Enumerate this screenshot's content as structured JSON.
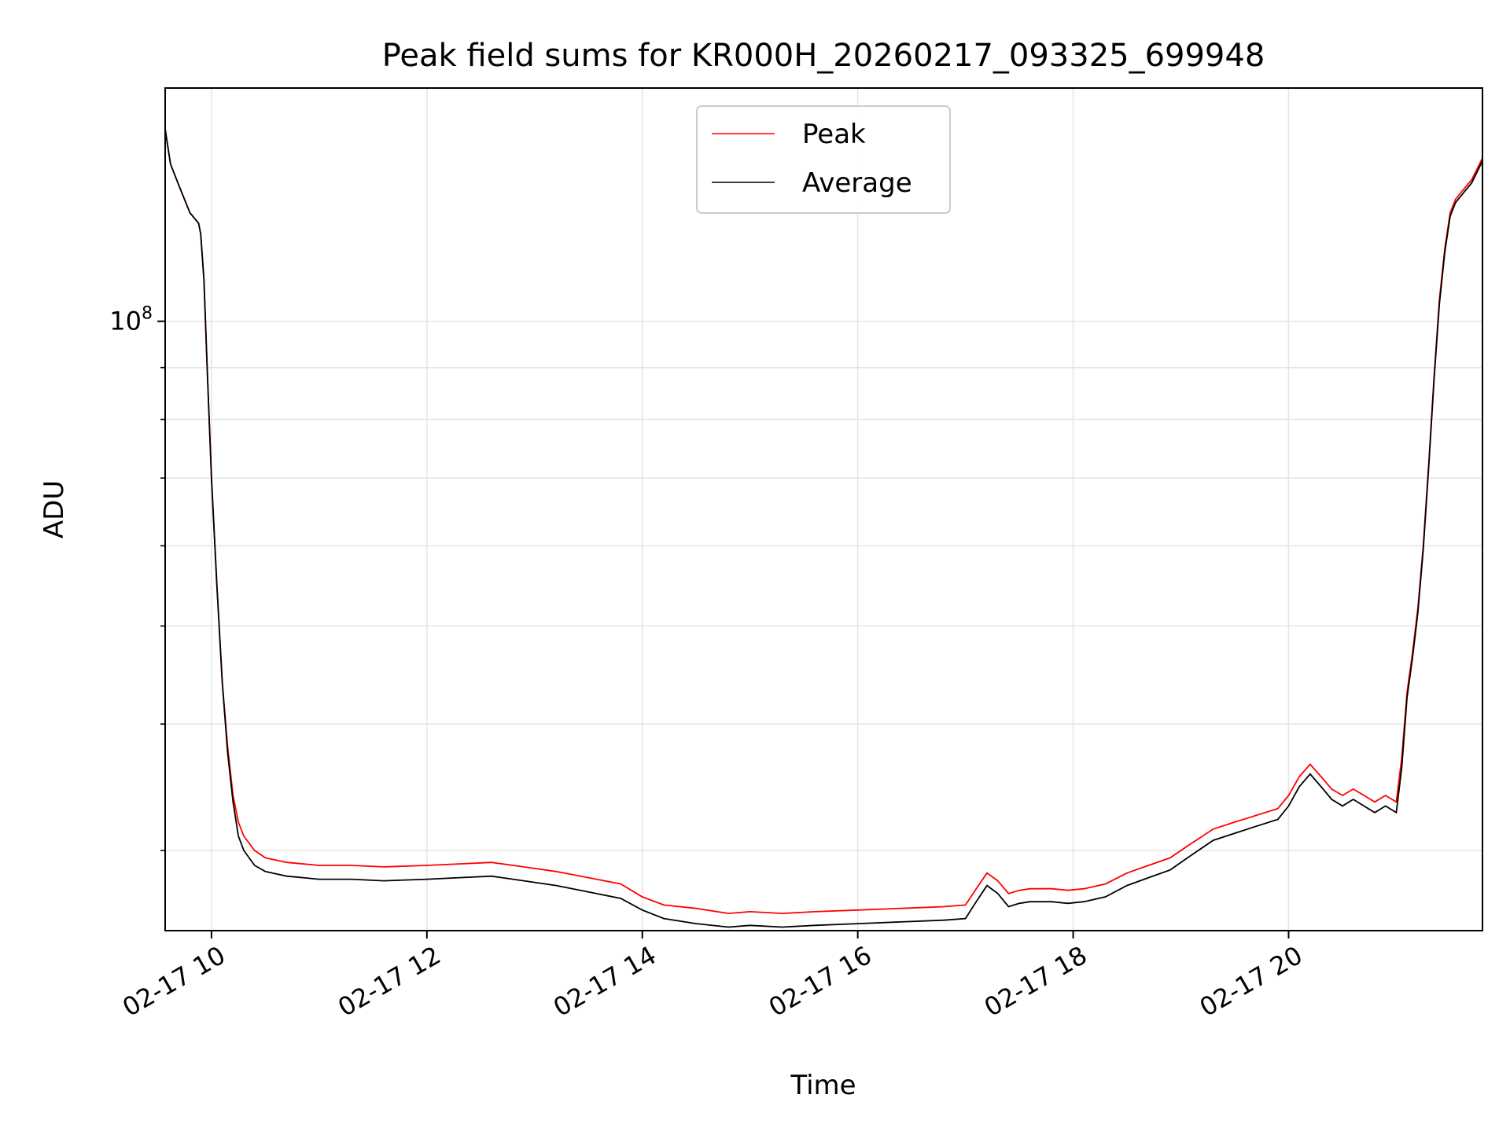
{
  "chart_data": {
    "type": "line",
    "title": "Peak field sums for KR000H_20260217_093325_699948",
    "xlabel": "Time",
    "ylabel": "ADU",
    "y_scale": "log",
    "xlim_hours": [
      9.57,
      21.8
    ],
    "ylim": [
      25000000,
      170000000
    ],
    "x_ticks": [
      {
        "value": 10,
        "label": "02-17 10"
      },
      {
        "value": 12,
        "label": "02-17 12"
      },
      {
        "value": 14,
        "label": "02-17 14"
      },
      {
        "value": 16,
        "label": "02-17 16"
      },
      {
        "value": 18,
        "label": "02-17 18"
      },
      {
        "value": 20,
        "label": "02-17 20"
      }
    ],
    "y_major_ticks": [
      {
        "value": 100000000,
        "base": "10",
        "exponent": "8"
      }
    ],
    "y_minor_ticks": [
      30000000,
      40000000,
      50000000,
      60000000,
      70000000,
      80000000,
      90000000
    ],
    "grid": true,
    "legend_position": "upper-center",
    "series": [
      {
        "name": "Peak",
        "color": "#ff0000",
        "x": [
          9.57,
          9.59,
          9.62,
          9.7,
          9.8,
          9.88,
          9.9,
          9.93,
          9.96,
          10.0,
          10.05,
          10.1,
          10.15,
          10.2,
          10.25,
          10.3,
          10.4,
          10.5,
          10.7,
          11.0,
          11.3,
          11.6,
          12.0,
          12.3,
          12.6,
          12.9,
          13.2,
          13.5,
          13.8,
          14.0,
          14.2,
          14.5,
          14.8,
          15.0,
          15.3,
          15.6,
          16.0,
          16.4,
          16.8,
          17.0,
          17.1,
          17.2,
          17.3,
          17.4,
          17.5,
          17.6,
          17.8,
          17.95,
          18.1,
          18.3,
          18.5,
          18.7,
          18.9,
          19.1,
          19.3,
          19.5,
          19.7,
          19.9,
          20.0,
          20.1,
          20.2,
          20.3,
          20.4,
          20.5,
          20.6,
          20.7,
          20.8,
          20.9,
          21.0,
          21.05,
          21.1,
          21.15,
          21.2,
          21.25,
          21.3,
          21.35,
          21.4,
          21.45,
          21.5,
          21.55,
          21.6,
          21.7,
          21.8
        ],
        "y": [
          155000000,
          150000000,
          143000000,
          136000000,
          128000000,
          125000000,
          122000000,
          110000000,
          90000000,
          70000000,
          55000000,
          44000000,
          38000000,
          34000000,
          32000000,
          31000000,
          30000000,
          29500000,
          29200000,
          29000000,
          29000000,
          28900000,
          29000000,
          29100000,
          29200000,
          28900000,
          28600000,
          28200000,
          27800000,
          27000000,
          26500000,
          26300000,
          26000000,
          26100000,
          26000000,
          26100000,
          26200000,
          26300000,
          26400000,
          26500000,
          27500000,
          28500000,
          28000000,
          27200000,
          27400000,
          27500000,
          27500000,
          27400000,
          27500000,
          27800000,
          28500000,
          29000000,
          29500000,
          30500000,
          31500000,
          32000000,
          32500000,
          33000000,
          34000000,
          35500000,
          36500000,
          35500000,
          34500000,
          34000000,
          34500000,
          34000000,
          33500000,
          34000000,
          33500000,
          37000000,
          43000000,
          47000000,
          52000000,
          60000000,
          72000000,
          88000000,
          105000000,
          118000000,
          128000000,
          132000000,
          134000000,
          138000000,
          145000000
        ]
      },
      {
        "name": "Average",
        "color": "#000000",
        "x": [
          9.57,
          9.59,
          9.62,
          9.7,
          9.8,
          9.88,
          9.9,
          9.93,
          9.96,
          10.0,
          10.05,
          10.1,
          10.15,
          10.2,
          10.25,
          10.3,
          10.4,
          10.5,
          10.7,
          11.0,
          11.3,
          11.6,
          12.0,
          12.3,
          12.6,
          12.9,
          13.2,
          13.5,
          13.8,
          14.0,
          14.2,
          14.5,
          14.8,
          15.0,
          15.3,
          15.6,
          16.0,
          16.4,
          16.8,
          17.0,
          17.1,
          17.2,
          17.3,
          17.4,
          17.5,
          17.6,
          17.8,
          17.95,
          18.1,
          18.3,
          18.5,
          18.7,
          18.9,
          19.1,
          19.3,
          19.5,
          19.7,
          19.9,
          20.0,
          20.1,
          20.2,
          20.3,
          20.4,
          20.5,
          20.6,
          20.7,
          20.8,
          20.9,
          21.0,
          21.05,
          21.1,
          21.15,
          21.2,
          21.25,
          21.3,
          21.35,
          21.4,
          21.45,
          21.5,
          21.55,
          21.6,
          21.7,
          21.8
        ],
        "y": [
          155000000,
          150000000,
          143000000,
          136000000,
          128000000,
          125000000,
          122000000,
          110000000,
          90000000,
          70000000,
          55000000,
          44000000,
          37500000,
          33500000,
          31000000,
          30000000,
          29000000,
          28600000,
          28300000,
          28100000,
          28100000,
          28000000,
          28100000,
          28200000,
          28300000,
          28000000,
          27700000,
          27300000,
          26900000,
          26200000,
          25700000,
          25400000,
          25200000,
          25300000,
          25200000,
          25300000,
          25400000,
          25500000,
          25600000,
          25700000,
          26700000,
          27700000,
          27200000,
          26400000,
          26600000,
          26700000,
          26700000,
          26600000,
          26700000,
          27000000,
          27700000,
          28200000,
          28700000,
          29700000,
          30700000,
          31200000,
          31700000,
          32200000,
          33200000,
          34700000,
          35700000,
          34700000,
          33700000,
          33200000,
          33700000,
          33200000,
          32700000,
          33200000,
          32700000,
          36200000,
          42500000,
          46500000,
          51500000,
          59500000,
          71500000,
          87500000,
          104000000,
          117000000,
          127000000,
          131000000,
          133000000,
          137000000,
          144000000
        ]
      }
    ]
  }
}
